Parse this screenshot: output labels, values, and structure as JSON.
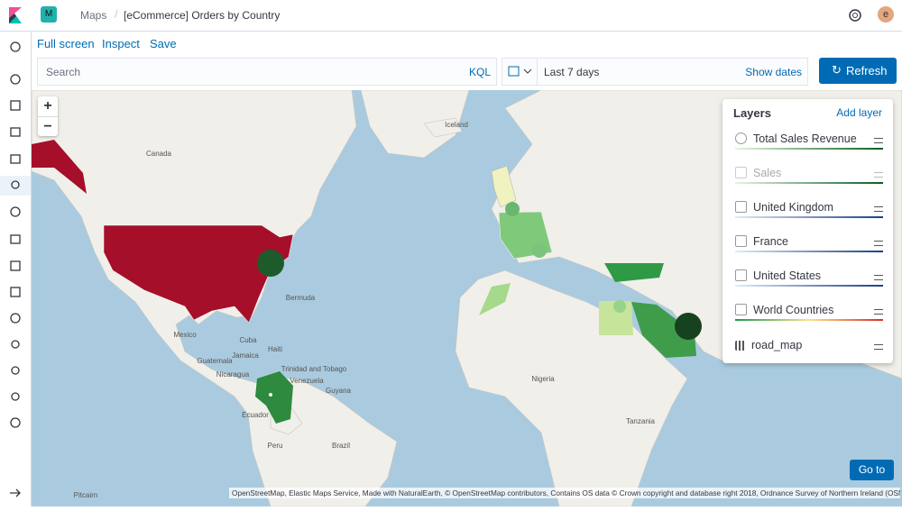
{
  "header": {
    "app_badge": "M",
    "breadcrumbs": [
      "Maps",
      "[eCommerce] Orders by Country"
    ],
    "user_initial": "e"
  },
  "toolbar": {
    "links": [
      "Full screen",
      "Inspect",
      "Save"
    ]
  },
  "query_bar": {
    "placeholder": "Search",
    "language": "KQL",
    "date_range": "Last 7 days",
    "show_dates": "Show dates",
    "refresh": "Refresh"
  },
  "map": {
    "zoom_in": "+",
    "zoom_out": "−",
    "labels": [
      "Iceland",
      "Canada",
      "Bermuda",
      "Mexico",
      "Cuba",
      "Jamaica",
      "Haiti",
      "Guatemala",
      "Nicaragua",
      "Venezuela",
      "Trinidad and Tobago",
      "Guyana",
      "Ecuador",
      "Peru",
      "Brazil",
      "Pitcairn",
      "Nigeria",
      "Tanzania"
    ],
    "go_to": "Go to",
    "attribution": "OpenStreetMap, Elastic Maps Service, Made with NaturalEarth, © OpenStreetMap contributors, Contains OS data © Crown copyright and database right 2018, Ordnance Survey of Northern Ireland (OSNI)"
  },
  "layers_panel": {
    "title": "Layers",
    "add_layer": "Add layer",
    "layers": [
      "Total Sales Revenue",
      "Sales",
      "United Kingdom",
      "France",
      "United States",
      "World Countries",
      "road_map"
    ]
  }
}
